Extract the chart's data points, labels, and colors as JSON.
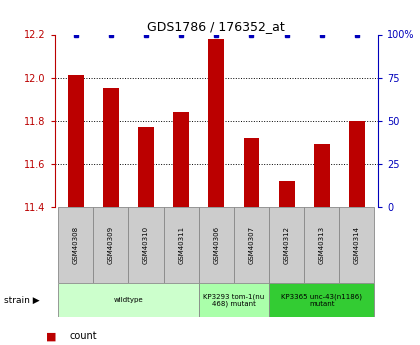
{
  "title": "GDS1786 / 176352_at",
  "samples": [
    "GSM40308",
    "GSM40309",
    "GSM40310",
    "GSM40311",
    "GSM40306",
    "GSM40307",
    "GSM40312",
    "GSM40313",
    "GSM40314"
  ],
  "counts": [
    12.01,
    11.95,
    11.77,
    11.84,
    12.18,
    11.72,
    11.52,
    11.69,
    11.8
  ],
  "percentiles": [
    100,
    100,
    100,
    100,
    100,
    100,
    100,
    100,
    100
  ],
  "ylim_left": [
    11.4,
    12.2
  ],
  "ylim_right": [
    0,
    100
  ],
  "yticks_left": [
    11.4,
    11.6,
    11.8,
    12.0,
    12.2
  ],
  "yticks_right": [
    0,
    25,
    50,
    75,
    100
  ],
  "bar_color": "#bb0000",
  "dot_color": "#0000bb",
  "strain_groups": [
    {
      "label": "wildtype",
      "start": 0,
      "end": 4,
      "color": "#ccffcc"
    },
    {
      "label": "KP3293 tom-1(nu\n468) mutant",
      "start": 4,
      "end": 6,
      "color": "#aaffaa"
    },
    {
      "label": "KP3365 unc-43(n1186)\nmutant",
      "start": 6,
      "end": 9,
      "color": "#33cc33"
    }
  ]
}
